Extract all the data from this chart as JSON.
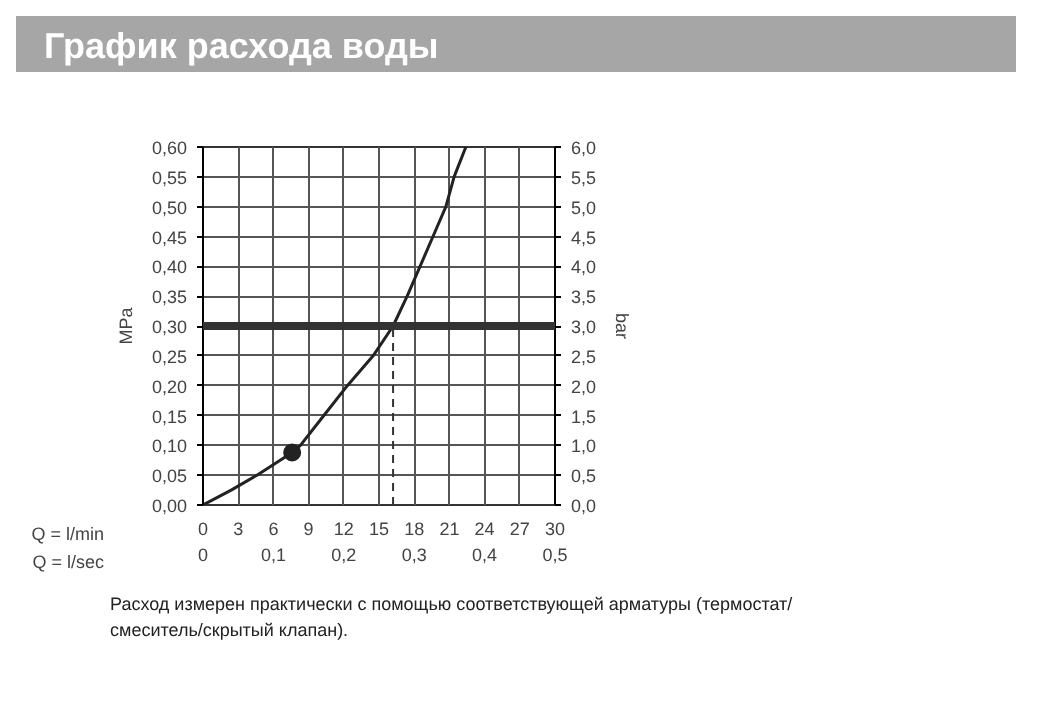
{
  "chart_data": {
    "type": "line",
    "title": "График расхода воды",
    "xlabel": "Q = l/min",
    "x2label": "Q = l/sec",
    "ylabel": "MPa",
    "y2label": "bar",
    "series": [
      {
        "type": "line",
        "color": "#222222",
        "x": [
          0,
          2.4,
          4.6,
          7.6,
          8.3,
          10.3,
          12.3,
          14.5,
          16.2,
          17.4,
          18.5,
          19.6,
          20.7,
          21.4,
          22.4
        ],
        "values": [
          0,
          0.025,
          0.05,
          0.088,
          0.1,
          0.15,
          0.2,
          0.25,
          0.3,
          0.35,
          0.4,
          0.45,
          0.5,
          0.55,
          0.6
        ]
      },
      {
        "type": "scatter",
        "color": "#222222",
        "marker": "circle",
        "x": [
          7.6
        ],
        "values": [
          0.088
        ]
      }
    ],
    "xlim": [
      0,
      30
    ],
    "xticks": [
      0,
      3,
      6,
      9,
      12,
      15,
      18,
      21,
      24,
      27,
      30
    ],
    "x2lim": [
      0,
      0.5
    ],
    "x2ticks": [
      0,
      {
        "value": 0.1,
        "label": "0,1"
      },
      {
        "value": 0.2,
        "label": "0,2"
      },
      {
        "value": 0.3,
        "label": "0,3"
      },
      {
        "value": 0.4,
        "label": "0,4"
      },
      {
        "value": 0.5,
        "label": "0,5"
      }
    ],
    "ylim": [
      0,
      0.6
    ],
    "yticks": [
      {
        "value": 0,
        "label": "0,00"
      },
      {
        "value": 0.05,
        "label": "0,05"
      },
      {
        "value": 0.1,
        "label": "0,10"
      },
      {
        "value": 0.15,
        "label": "0,15"
      },
      {
        "value": 0.2,
        "label": "0,20"
      },
      {
        "value": 0.25,
        "label": "0,25"
      },
      {
        "value": 0.3,
        "label": "0,30"
      },
      {
        "value": 0.35,
        "label": "0,35"
      },
      {
        "value": 0.4,
        "label": "0,40"
      },
      {
        "value": 0.45,
        "label": "0,45"
      },
      {
        "value": 0.5,
        "label": "0,50"
      },
      {
        "value": 0.55,
        "label": "0,55"
      },
      {
        "value": 0.6,
        "label": "0,60"
      }
    ],
    "y2lim": [
      0,
      6
    ],
    "y2ticks": [
      {
        "value": 0,
        "label": "0,0"
      },
      {
        "value": 0.5,
        "label": "0,5"
      },
      {
        "value": 1,
        "label": "1,0"
      },
      {
        "value": 1.5,
        "label": "1,5"
      },
      {
        "value": 2,
        "label": "2,0"
      },
      {
        "value": 2.5,
        "label": "2,5"
      },
      {
        "value": 3,
        "label": "3,0"
      },
      {
        "value": 3.5,
        "label": "3,5"
      },
      {
        "value": 4,
        "label": "4,0"
      },
      {
        "value": 4.5,
        "label": "4,5"
      },
      {
        "value": 5,
        "label": "5,0"
      },
      {
        "value": 5.5,
        "label": "5,5"
      },
      {
        "value": 6,
        "label": "6,0"
      }
    ],
    "ref_lines": [
      {
        "axis": "y",
        "value": 0.3,
        "color": "#333333",
        "line_style": "solid"
      },
      {
        "axis": "x",
        "value": 16.2,
        "color": "#333333",
        "line_style": "dashed"
      }
    ],
    "grid": true,
    "annotations": [
      "Расход измерен практически с помощью соответствующей арматуры (термостат/\nсмеситель/скрытый клапан)."
    ]
  }
}
